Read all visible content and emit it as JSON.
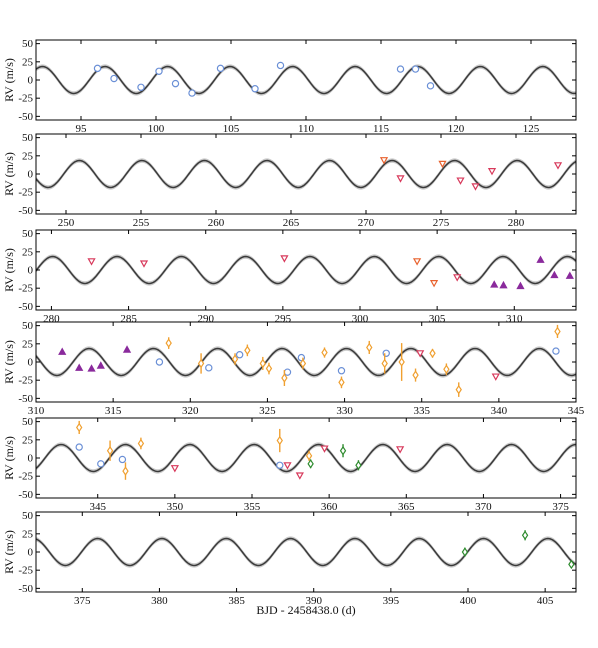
{
  "figure": {
    "xlabel": "BJD - 2458438.0 (d)",
    "ylabel": "RV (m/s)"
  },
  "chart_data": [
    {
      "type": "scatter",
      "xlim": [
        92,
        128
      ],
      "ylim": [
        -55,
        55
      ],
      "xticks": [
        95,
        100,
        105,
        110,
        115,
        120,
        125
      ],
      "yticks": [
        50,
        25,
        0,
        -25,
        -50
      ],
      "ylabel": "RV (m/s)",
      "series": [
        {
          "color": "#6a8fd6",
          "marker": "circle",
          "points": [
            [
              96.1,
              16,
              3
            ],
            [
              97.2,
              2,
              3
            ],
            [
              99.0,
              -10,
              3
            ],
            [
              100.2,
              12,
              3
            ],
            [
              101.3,
              -5,
              3
            ],
            [
              102.4,
              -18,
              3
            ],
            [
              104.3,
              16,
              3
            ],
            [
              106.6,
              -12,
              3
            ],
            [
              108.3,
              20,
              3
            ],
            [
              116.3,
              15,
              3
            ],
            [
              117.3,
              15,
              3
            ],
            [
              118.3,
              -8,
              3
            ]
          ]
        }
      ]
    },
    {
      "type": "scatter",
      "xlim": [
        248,
        284
      ],
      "ylim": [
        -55,
        55
      ],
      "xticks": [
        250,
        255,
        260,
        265,
        270,
        275,
        280
      ],
      "yticks": [
        50,
        25,
        0,
        -25,
        -50
      ],
      "ylabel": "RV (m/s)",
      "series": [
        {
          "color": "#e8622e",
          "marker": "triangle-down",
          "points": [
            [
              271.2,
              19,
              3
            ],
            [
              275.1,
              14,
              3
            ]
          ]
        },
        {
          "color": "#d83a5c",
          "marker": "triangle-down",
          "points": [
            [
              272.3,
              -6,
              3
            ],
            [
              276.3,
              -9,
              3
            ],
            [
              277.3,
              -17,
              3
            ],
            [
              278.4,
              4,
              3
            ],
            [
              282.8,
              12,
              3
            ]
          ]
        }
      ]
    },
    {
      "type": "scatter",
      "xlim": [
        279,
        314
      ],
      "ylim": [
        -55,
        55
      ],
      "xticks": [
        280,
        285,
        290,
        295,
        300,
        305,
        310
      ],
      "yticks": [
        50,
        25,
        0,
        -25,
        -50
      ],
      "ylabel": "RV (m/s)",
      "series": [
        {
          "color": "#e8622e",
          "marker": "triangle-down",
          "points": [
            [
              303.7,
              12,
              3
            ],
            [
              304.8,
              -18,
              3
            ]
          ]
        },
        {
          "color": "#d83a5c",
          "marker": "triangle-down",
          "points": [
            [
              282.6,
              12,
              3
            ],
            [
              286.0,
              9,
              3
            ],
            [
              295.1,
              16,
              3
            ],
            [
              306.3,
              -10,
              3
            ]
          ]
        },
        {
          "color": "#8a2a9c",
          "marker": "triangle",
          "points": [
            [
              308.7,
              -20,
              3
            ],
            [
              309.3,
              -21,
              3
            ],
            [
              310.4,
              -22,
              3
            ],
            [
              311.7,
              14,
              3
            ],
            [
              312.6,
              -7,
              3
            ],
            [
              313.6,
              -8,
              3
            ]
          ]
        }
      ]
    },
    {
      "type": "scatter",
      "xlim": [
        310,
        345
      ],
      "ylim": [
        -55,
        55
      ],
      "xticks": [
        310,
        315,
        320,
        325,
        330,
        335,
        340,
        345
      ],
      "yticks": [
        50,
        25,
        0,
        -25,
        -50
      ],
      "ylabel": "RV (m/s)",
      "series": [
        {
          "color": "#8a2a9c",
          "marker": "triangle",
          "points": [
            [
              311.7,
              14,
              3
            ],
            [
              312.8,
              -8,
              3
            ],
            [
              313.6,
              -9,
              3
            ],
            [
              314.2,
              -5,
              3
            ],
            [
              315.9,
              17,
              3
            ]
          ]
        },
        {
          "color": "#6a8fd6",
          "marker": "circle",
          "points": [
            [
              318.0,
              0,
              3
            ],
            [
              321.2,
              -8,
              3
            ],
            [
              323.2,
              10,
              3
            ],
            [
              326.3,
              -14,
              3
            ],
            [
              327.2,
              6,
              3
            ],
            [
              329.8,
              -12,
              3
            ],
            [
              332.7,
              12,
              3
            ],
            [
              343.7,
              15,
              3
            ]
          ]
        },
        {
          "color": "#f0a030",
          "marker": "diamond",
          "points": [
            [
              318.6,
              26,
              8
            ],
            [
              320.7,
              -2,
              14
            ],
            [
              322.9,
              4,
              8
            ],
            [
              323.7,
              16,
              8
            ],
            [
              324.7,
              -2,
              9
            ],
            [
              325.1,
              -9,
              8
            ],
            [
              326.1,
              -22,
              11
            ],
            [
              327.3,
              -2,
              8
            ],
            [
              328.7,
              13,
              7
            ],
            [
              329.8,
              -28,
              8
            ],
            [
              331.6,
              20,
              9
            ],
            [
              332.6,
              -2,
              14
            ],
            [
              333.7,
              0,
              26
            ],
            [
              334.6,
              -18,
              9
            ],
            [
              335.7,
              12,
              6
            ],
            [
              336.6,
              -10,
              8
            ],
            [
              337.4,
              -38,
              10
            ],
            [
              343.8,
              42,
              9
            ]
          ]
        },
        {
          "color": "#d83a5c",
          "marker": "triangle-down",
          "points": [
            [
              334.9,
              12,
              3
            ],
            [
              339.8,
              -20,
              3
            ]
          ]
        }
      ]
    },
    {
      "type": "scatter",
      "xlim": [
        341,
        376
      ],
      "ylim": [
        -55,
        55
      ],
      "xticks": [
        345,
        350,
        355,
        360,
        365,
        370,
        375
      ],
      "yticks": [
        50,
        25,
        0,
        -25,
        -50
      ],
      "ylabel": "RV (m/s)",
      "series": [
        {
          "color": "#f0a030",
          "marker": "diamond",
          "points": [
            [
              343.8,
              42,
              9
            ],
            [
              345.8,
              10,
              14
            ],
            [
              346.8,
              -18,
              12
            ],
            [
              347.8,
              20,
              8
            ],
            [
              356.8,
              24,
              16
            ],
            [
              358.7,
              3,
              7
            ]
          ]
        },
        {
          "color": "#6a8fd6",
          "marker": "circle",
          "points": [
            [
              343.8,
              15,
              3
            ],
            [
              345.2,
              -8,
              3
            ],
            [
              346.6,
              -2,
              3
            ],
            [
              356.8,
              -10,
              3
            ]
          ]
        },
        {
          "color": "#d83a5c",
          "marker": "triangle-down",
          "points": [
            [
              350.0,
              -14,
              3
            ],
            [
              357.3,
              -10,
              3
            ],
            [
              358.1,
              -24,
              3
            ],
            [
              359.7,
              13,
              3
            ],
            [
              364.6,
              12,
              3
            ]
          ]
        },
        {
          "color": "#2e8b2e",
          "marker": "diamond",
          "points": [
            [
              358.8,
              -8,
              6
            ],
            [
              360.9,
              10,
              9
            ],
            [
              361.9,
              -10,
              7
            ]
          ]
        }
      ]
    },
    {
      "type": "scatter",
      "xlim": [
        372,
        407
      ],
      "ylim": [
        -55,
        55
      ],
      "xticks": [
        375,
        380,
        385,
        390,
        395,
        400,
        405
      ],
      "yticks": [
        50,
        25,
        0,
        -25,
        -50
      ],
      "ylabel": "RV (m/s)",
      "xlabel": "BJD - 2458438.0 (d)",
      "series": [
        {
          "color": "#2e8b2e",
          "marker": "diamond",
          "points": [
            [
              399.8,
              0,
              6
            ],
            [
              403.7,
              23,
              7
            ],
            [
              406.7,
              -17,
              4
            ]
          ]
        }
      ]
    }
  ],
  "model": {
    "amplitude": 18.5,
    "period": 4.17,
    "phase_t0": 96.6,
    "band_width": 3,
    "line_color": "#3a3a3a",
    "band_color": "#c9c9c9"
  }
}
